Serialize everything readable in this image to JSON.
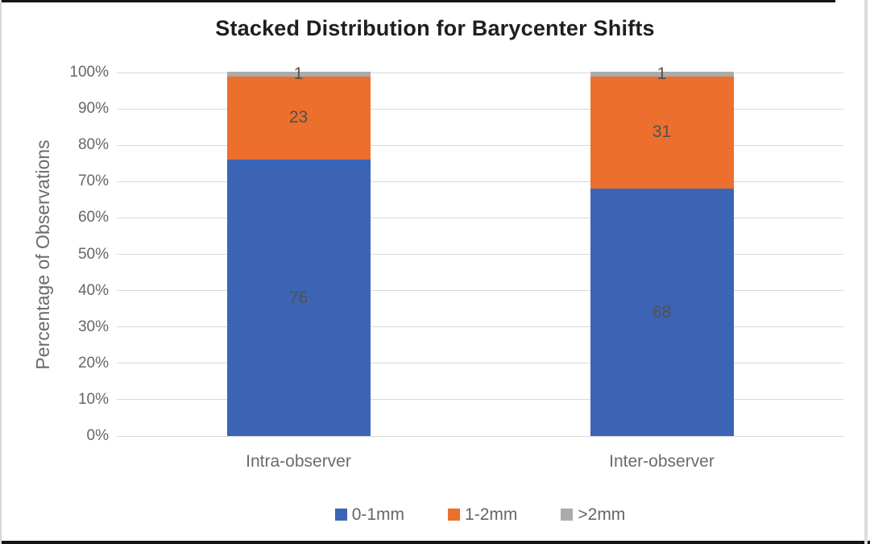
{
  "title": "Stacked Distribution for Barycenter Shifts",
  "chart_data": {
    "type": "bar",
    "stacked": true,
    "percent_stacked": true,
    "title": "Stacked Distribution for Barycenter Shifts",
    "ylabel": "Percentage of Observations",
    "xlabel": "",
    "categories": [
      "Intra-observer",
      "Inter-observer"
    ],
    "series": [
      {
        "name": "0-1mm",
        "color": "#3B64B5",
        "values": [
          76,
          68
        ]
      },
      {
        "name": "1-2mm",
        "color": "#EC6F2D",
        "values": [
          23,
          31
        ]
      },
      {
        "name": ">2mm",
        "color": "#ABABAB",
        "values": [
          1,
          1
        ]
      }
    ],
    "ylim": [
      0,
      100
    ],
    "ytick_step": 10,
    "ytick_suffix": "%",
    "grid": true,
    "legend_position": "bottom",
    "value_labels_shown": true
  },
  "colors": {
    "grid": "#D9D9D9",
    "axis_text": "#666666",
    "data_label": "#515151",
    "title_text": "#1F1F1F",
    "frame_dark": "#141414",
    "frame_light": "#D8D8D8",
    "background": "#FFFFFF"
  }
}
